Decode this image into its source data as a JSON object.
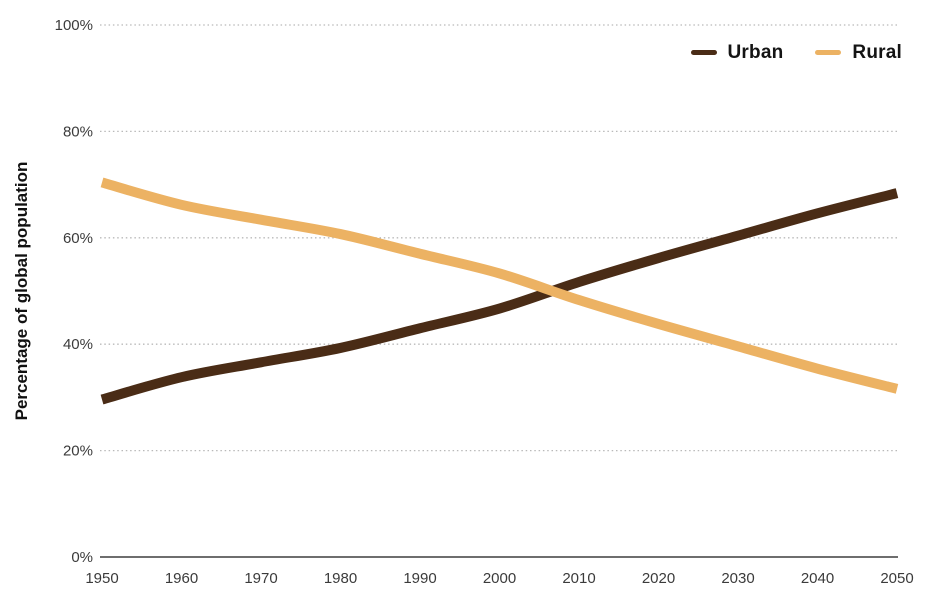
{
  "chart_data": {
    "type": "line",
    "title": "",
    "ylabel": "Percentage of global population",
    "xlabel": "",
    "x": [
      1950,
      1960,
      1970,
      1980,
      1990,
      2000,
      2010,
      2020,
      2030,
      2040,
      2050
    ],
    "series": [
      {
        "name": "Urban",
        "color": "#4a2c16",
        "values": [
          29.6,
          33.8,
          36.6,
          39.3,
          43.0,
          46.7,
          51.7,
          56.2,
          60.4,
          64.6,
          68.4
        ]
      },
      {
        "name": "Rural",
        "color": "#ecb263",
        "values": [
          70.4,
          66.2,
          63.4,
          60.7,
          57.0,
          53.3,
          48.3,
          43.8,
          39.6,
          35.4,
          31.6
        ]
      }
    ],
    "xlim": [
      1950,
      2050
    ],
    "ylim": [
      0,
      100
    ],
    "yticks": [
      0,
      20,
      40,
      60,
      80,
      100
    ],
    "ytick_labels": [
      "0%",
      "20%",
      "40%",
      "60%",
      "80%",
      "100%"
    ],
    "xtick_labels": [
      "1950",
      "1960",
      "1970",
      "1980",
      "1990",
      "2000",
      "2010",
      "2020",
      "2030",
      "2040",
      "2050"
    ],
    "grid": "horizontal-dotted",
    "legend_position": "top-right",
    "line_width": 10
  },
  "style_colors": {
    "background": "#ffffff",
    "grid": "#b9b9b9",
    "axis": "#6e6e6e",
    "tick_text": "#3b3b3b",
    "y_title_text": "#111111",
    "legend_text": "#141414"
  }
}
